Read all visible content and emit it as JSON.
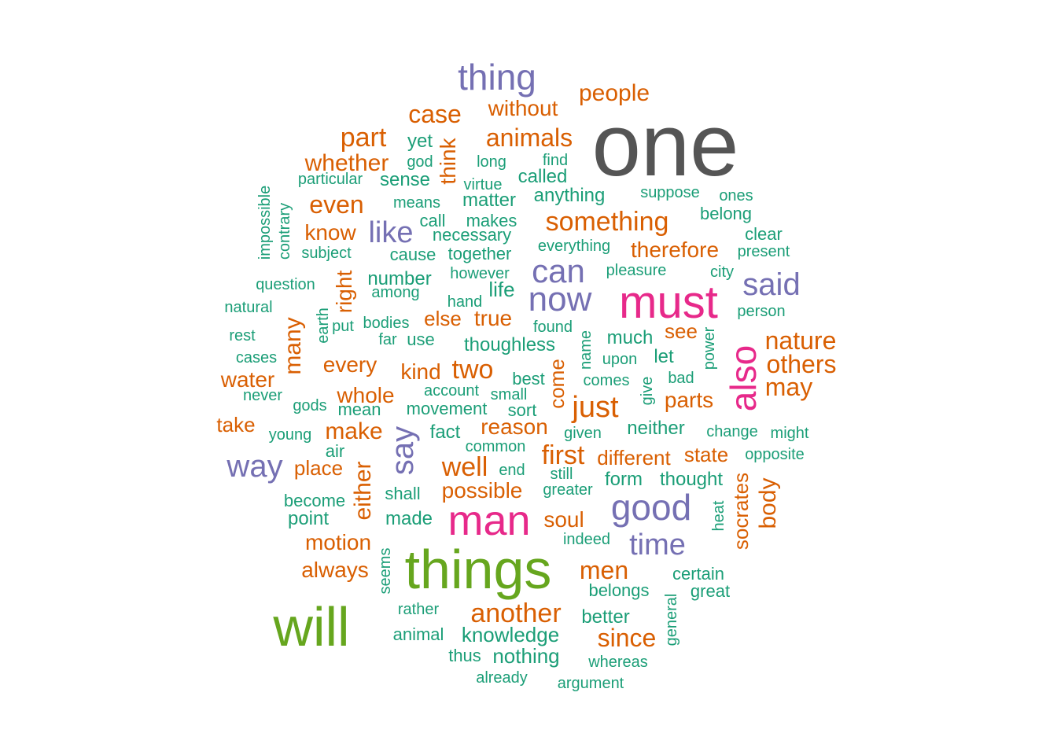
{
  "colors": {
    "teal": "#1b9e77",
    "orange": "#d95f02",
    "purple": "#7570b3",
    "pink": "#e7298a",
    "green": "#66a61e",
    "gray": "#555555"
  },
  "words": [
    {
      "text": "one",
      "color": "gray"
    },
    {
      "text": "things",
      "color": "green"
    },
    {
      "text": "will",
      "color": "green"
    },
    {
      "text": "must",
      "color": "pink"
    },
    {
      "text": "man",
      "color": "pink"
    },
    {
      "text": "also",
      "color": "pink"
    },
    {
      "text": "thing",
      "color": "purple"
    },
    {
      "text": "good",
      "color": "purple"
    },
    {
      "text": "now",
      "color": "purple"
    },
    {
      "text": "can",
      "color": "purple"
    },
    {
      "text": "said",
      "color": "purple"
    },
    {
      "text": "say",
      "color": "purple"
    },
    {
      "text": "way",
      "color": "purple"
    },
    {
      "text": "like",
      "color": "purple"
    },
    {
      "text": "time",
      "color": "purple"
    },
    {
      "text": "people",
      "color": "orange"
    },
    {
      "text": "without",
      "color": "orange"
    },
    {
      "text": "case",
      "color": "orange"
    },
    {
      "text": "part",
      "color": "orange"
    },
    {
      "text": "animals",
      "color": "orange"
    },
    {
      "text": "whether",
      "color": "orange"
    },
    {
      "text": "think",
      "color": "orange"
    },
    {
      "text": "even",
      "color": "orange"
    },
    {
      "text": "know",
      "color": "orange"
    },
    {
      "text": "something",
      "color": "orange"
    },
    {
      "text": "therefore",
      "color": "orange"
    },
    {
      "text": "right",
      "color": "orange"
    },
    {
      "text": "many",
      "color": "orange"
    },
    {
      "text": "else",
      "color": "orange"
    },
    {
      "text": "true",
      "color": "orange"
    },
    {
      "text": "see",
      "color": "orange"
    },
    {
      "text": "nature",
      "color": "orange"
    },
    {
      "text": "others",
      "color": "orange"
    },
    {
      "text": "may",
      "color": "orange"
    },
    {
      "text": "every",
      "color": "orange"
    },
    {
      "text": "kind",
      "color": "orange"
    },
    {
      "text": "two",
      "color": "orange"
    },
    {
      "text": "come",
      "color": "orange"
    },
    {
      "text": "water",
      "color": "orange"
    },
    {
      "text": "whole",
      "color": "orange"
    },
    {
      "text": "just",
      "color": "orange"
    },
    {
      "text": "parts",
      "color": "orange"
    },
    {
      "text": "take",
      "color": "orange"
    },
    {
      "text": "make",
      "color": "orange"
    },
    {
      "text": "reason",
      "color": "orange"
    },
    {
      "text": "first",
      "color": "orange"
    },
    {
      "text": "different",
      "color": "orange"
    },
    {
      "text": "state",
      "color": "orange"
    },
    {
      "text": "place",
      "color": "orange"
    },
    {
      "text": "either",
      "color": "orange"
    },
    {
      "text": "well",
      "color": "orange"
    },
    {
      "text": "possible",
      "color": "orange"
    },
    {
      "text": "socrates",
      "color": "orange"
    },
    {
      "text": "body",
      "color": "orange"
    },
    {
      "text": "soul",
      "color": "orange"
    },
    {
      "text": "motion",
      "color": "orange"
    },
    {
      "text": "always",
      "color": "orange"
    },
    {
      "text": "men",
      "color": "orange"
    },
    {
      "text": "another",
      "color": "orange"
    },
    {
      "text": "since",
      "color": "orange"
    },
    {
      "text": "yet",
      "color": "teal"
    },
    {
      "text": "god",
      "color": "teal"
    },
    {
      "text": "long",
      "color": "teal"
    },
    {
      "text": "find",
      "color": "teal"
    },
    {
      "text": "called",
      "color": "teal"
    },
    {
      "text": "particular",
      "color": "teal"
    },
    {
      "text": "sense",
      "color": "teal"
    },
    {
      "text": "virtue",
      "color": "teal"
    },
    {
      "text": "anything",
      "color": "teal"
    },
    {
      "text": "suppose",
      "color": "teal"
    },
    {
      "text": "ones",
      "color": "teal"
    },
    {
      "text": "impossible",
      "color": "teal"
    },
    {
      "text": "contrary",
      "color": "teal"
    },
    {
      "text": "means",
      "color": "teal"
    },
    {
      "text": "matter",
      "color": "teal"
    },
    {
      "text": "belong",
      "color": "teal"
    },
    {
      "text": "call",
      "color": "teal"
    },
    {
      "text": "makes",
      "color": "teal"
    },
    {
      "text": "necessary",
      "color": "teal"
    },
    {
      "text": "clear",
      "color": "teal"
    },
    {
      "text": "subject",
      "color": "teal"
    },
    {
      "text": "cause",
      "color": "teal"
    },
    {
      "text": "together",
      "color": "teal"
    },
    {
      "text": "everything",
      "color": "teal"
    },
    {
      "text": "present",
      "color": "teal"
    },
    {
      "text": "question",
      "color": "teal"
    },
    {
      "text": "number",
      "color": "teal"
    },
    {
      "text": "however",
      "color": "teal"
    },
    {
      "text": "pleasure",
      "color": "teal"
    },
    {
      "text": "city",
      "color": "teal"
    },
    {
      "text": "among",
      "color": "teal"
    },
    {
      "text": "life",
      "color": "teal"
    },
    {
      "text": "natural",
      "color": "teal"
    },
    {
      "text": "hand",
      "color": "teal"
    },
    {
      "text": "person",
      "color": "teal"
    },
    {
      "text": "earth",
      "color": "teal"
    },
    {
      "text": "put",
      "color": "teal"
    },
    {
      "text": "bodies",
      "color": "teal"
    },
    {
      "text": "found",
      "color": "teal"
    },
    {
      "text": "rest",
      "color": "teal"
    },
    {
      "text": "far",
      "color": "teal"
    },
    {
      "text": "use",
      "color": "teal"
    },
    {
      "text": "thoughless",
      "color": "teal"
    },
    {
      "text": "name",
      "color": "teal"
    },
    {
      "text": "much",
      "color": "teal"
    },
    {
      "text": "power",
      "color": "teal"
    },
    {
      "text": "cases",
      "color": "teal"
    },
    {
      "text": "upon",
      "color": "teal"
    },
    {
      "text": "let",
      "color": "teal"
    },
    {
      "text": "best",
      "color": "teal"
    },
    {
      "text": "comes",
      "color": "teal"
    },
    {
      "text": "bad",
      "color": "teal"
    },
    {
      "text": "never",
      "color": "teal"
    },
    {
      "text": "account",
      "color": "teal"
    },
    {
      "text": "small",
      "color": "teal"
    },
    {
      "text": "give",
      "color": "teal"
    },
    {
      "text": "gods",
      "color": "teal"
    },
    {
      "text": "mean",
      "color": "teal"
    },
    {
      "text": "movement",
      "color": "teal"
    },
    {
      "text": "sort",
      "color": "teal"
    },
    {
      "text": "young",
      "color": "teal"
    },
    {
      "text": "fact",
      "color": "teal"
    },
    {
      "text": "given",
      "color": "teal"
    },
    {
      "text": "neither",
      "color": "teal"
    },
    {
      "text": "change",
      "color": "teal"
    },
    {
      "text": "might",
      "color": "teal"
    },
    {
      "text": "common",
      "color": "teal"
    },
    {
      "text": "air",
      "color": "teal"
    },
    {
      "text": "opposite",
      "color": "teal"
    },
    {
      "text": "end",
      "color": "teal"
    },
    {
      "text": "still",
      "color": "teal"
    },
    {
      "text": "form",
      "color": "teal"
    },
    {
      "text": "thought",
      "color": "teal"
    },
    {
      "text": "shall",
      "color": "teal"
    },
    {
      "text": "greater",
      "color": "teal"
    },
    {
      "text": "become",
      "color": "teal"
    },
    {
      "text": "heat",
      "color": "teal"
    },
    {
      "text": "point",
      "color": "teal"
    },
    {
      "text": "made",
      "color": "teal"
    },
    {
      "text": "indeed",
      "color": "teal"
    },
    {
      "text": "seems",
      "color": "teal"
    },
    {
      "text": "certain",
      "color": "teal"
    },
    {
      "text": "belongs",
      "color": "teal"
    },
    {
      "text": "great",
      "color": "teal"
    },
    {
      "text": "general",
      "color": "teal"
    },
    {
      "text": "rather",
      "color": "teal"
    },
    {
      "text": "better",
      "color": "teal"
    },
    {
      "text": "animal",
      "color": "teal"
    },
    {
      "text": "knowledge",
      "color": "teal"
    },
    {
      "text": "thus",
      "color": "teal"
    },
    {
      "text": "nothing",
      "color": "teal"
    },
    {
      "text": "whereas",
      "color": "teal"
    },
    {
      "text": "already",
      "color": "teal"
    },
    {
      "text": "argument",
      "color": "teal"
    }
  ]
}
